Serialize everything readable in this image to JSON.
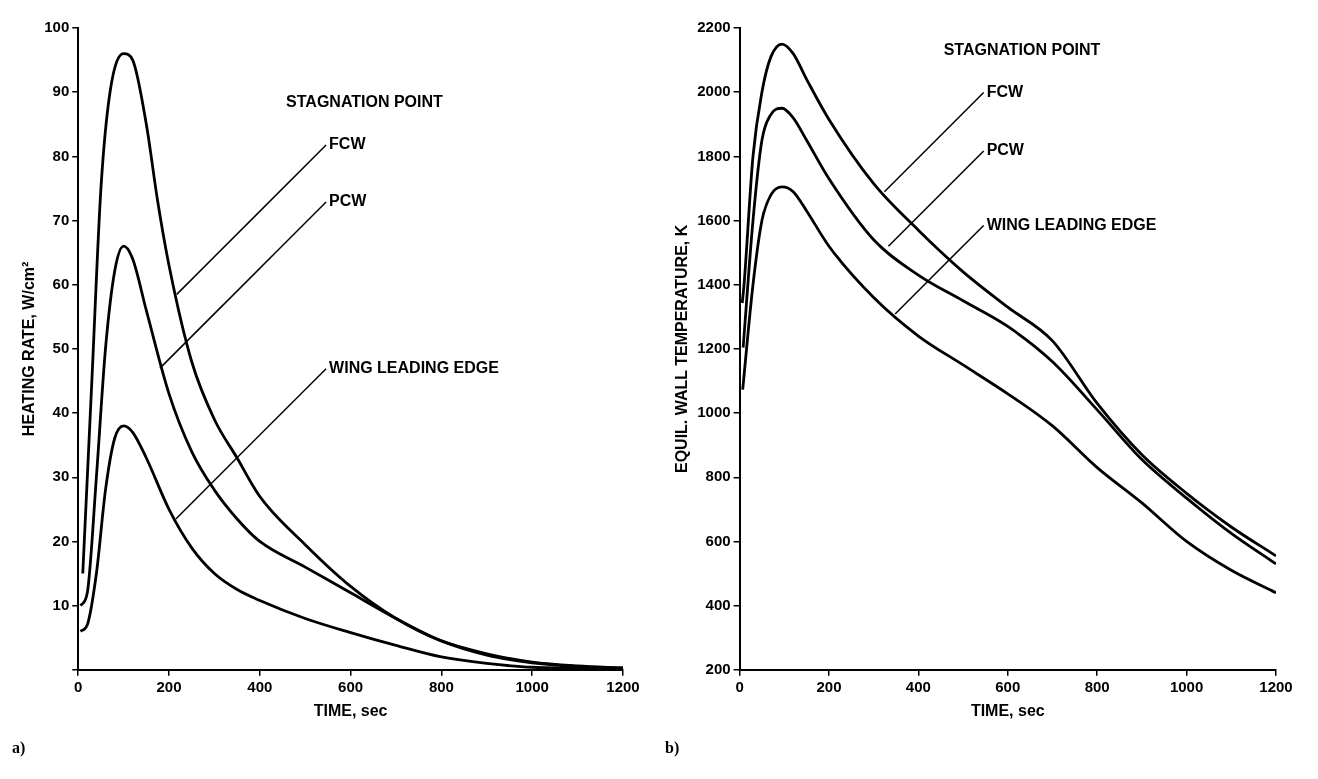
{
  "chart_data": [
    {
      "type": "line",
      "xlabel": "TIME, sec",
      "ylabel": "HEATING RATE, W/cm²",
      "xlim": [
        0,
        1200
      ],
      "xticks": [
        0,
        200,
        400,
        600,
        800,
        1000,
        1200
      ],
      "ylim": [
        0,
        100
      ],
      "yticks": [
        {
          "value": 0,
          "label": null
        },
        10,
        20,
        30,
        40,
        50,
        60,
        70,
        80,
        90,
        100
      ],
      "grid": false,
      "legend": false,
      "series": [
        {
          "color": "#000000",
          "x": [
            10,
            30,
            50,
            70,
            100,
            120,
            150,
            175,
            200,
            250,
            300,
            350,
            400,
            500,
            600,
            700,
            800,
            900,
            1000,
            1100,
            1200
          ],
          "values": [
            15,
            45,
            75,
            90,
            96,
            95,
            85,
            73,
            63,
            48,
            39,
            33,
            27,
            19.5,
            13,
            8,
            4.5,
            2.5,
            1.2,
            0.6,
            0.3
          ]
        },
        {
          "color": "#000000",
          "x": [
            5,
            20,
            40,
            60,
            80,
            100,
            120,
            150,
            200,
            250,
            300,
            350,
            400,
            500,
            600,
            700,
            800,
            900,
            1000,
            1100,
            1200
          ],
          "values": [
            10,
            12,
            30,
            50,
            62,
            66,
            64,
            56,
            43,
            34,
            28,
            23.5,
            20,
            16,
            12,
            8,
            4.5,
            2.3,
            1.1,
            0.5,
            0.3
          ]
        },
        {
          "color": "#000000",
          "x": [
            5,
            20,
            40,
            60,
            80,
            100,
            120,
            150,
            200,
            250,
            300,
            350,
            400,
            500,
            600,
            700,
            800,
            900,
            1000,
            1200
          ],
          "values": [
            6,
            7,
            15,
            28,
            36,
            38,
            37,
            33,
            25,
            19,
            15,
            12.5,
            10.8,
            8,
            5.8,
            3.8,
            2,
            1,
            0.4,
            0.2
          ]
        }
      ],
      "annotations": [
        "STAGNATION POINT",
        "a)",
        {
          "text": "FCW",
          "x": 217,
          "y": 58.5
        },
        {
          "text": "PCW",
          "x": 180,
          "y": 47
        },
        {
          "text": "WING LEADING EDGE",
          "x": 215,
          "y": 23.5
        }
      ]
    },
    {
      "type": "line",
      "xlabel": "TIME, sec",
      "ylabel": "EQUIL. WALL TEMPERATURE, K",
      "xlim": [
        0,
        1200
      ],
      "xticks": [
        0,
        200,
        400,
        600,
        800,
        1000,
        1200
      ],
      "ylim": [
        200,
        2200
      ],
      "yticks": [
        200,
        400,
        600,
        800,
        1000,
        1200,
        1400,
        1600,
        1800,
        2000,
        2200
      ],
      "grid": false,
      "legend": false,
      "series": [
        {
          "color": "#000000",
          "x": [
            6,
            10,
            30,
            50,
            70,
            95,
            120,
            150,
            200,
            300,
            400,
            500,
            600,
            700,
            800,
            900,
            1000,
            1100,
            1200
          ],
          "values": [
            1343,
            1400,
            1800,
            2000,
            2110,
            2150,
            2120,
            2040,
            1915,
            1715,
            1570,
            1440,
            1330,
            1225,
            1030,
            870,
            750,
            645,
            555
          ]
        },
        {
          "color": "#000000",
          "x": [
            8,
            30,
            50,
            70,
            95,
            120,
            150,
            200,
            300,
            400,
            500,
            600,
            700,
            800,
            900,
            1000,
            1100,
            1200
          ],
          "values": [
            1204,
            1600,
            1850,
            1930,
            1950,
            1920,
            1850,
            1730,
            1540,
            1430,
            1350,
            1270,
            1160,
            1010,
            855,
            735,
            625,
            530
          ]
        },
        {
          "color": "#000000",
          "x": [
            7,
            30,
            50,
            70,
            95,
            120,
            150,
            200,
            300,
            400,
            500,
            600,
            700,
            800,
            900,
            1000,
            1100,
            1200
          ],
          "values": [
            1073,
            1400,
            1600,
            1680,
            1705,
            1690,
            1630,
            1520,
            1360,
            1240,
            1150,
            1060,
            960,
            830,
            720,
            600,
            510,
            440
          ]
        }
      ],
      "annotations": [
        "STAGNATION POINT",
        "b)",
        {
          "text": "FCW",
          "x": 324,
          "y": 1690
        },
        {
          "text": "PCW",
          "x": 333,
          "y": 1520
        },
        {
          "text": "WING LEADING EDGE",
          "x": 348,
          "y": 1309
        }
      ]
    }
  ]
}
